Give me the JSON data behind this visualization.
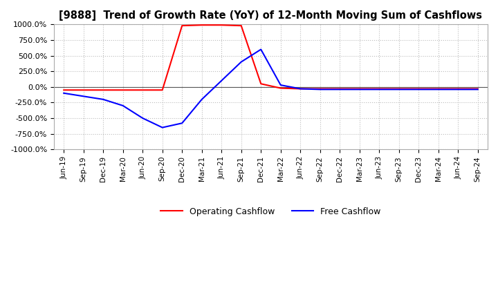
{
  "title": "[9888]  Trend of Growth Rate (YoY) of 12-Month Moving Sum of Cashflows",
  "ylim": [
    -1000,
    1000
  ],
  "yticks": [
    -1000,
    -750,
    -500,
    -250,
    0,
    250,
    500,
    750,
    1000
  ],
  "ytick_labels": [
    "-1000.0%",
    "-750.0%",
    "-500.0%",
    "-250.0%",
    "0.0%",
    "250.0%",
    "500.0%",
    "750.0%",
    "1000.0%"
  ],
  "background_color": "#ffffff",
  "grid_color": "#bbbbbb",
  "x_labels": [
    "Jun-19",
    "Sep-19",
    "Dec-19",
    "Mar-20",
    "Jun-20",
    "Sep-20",
    "Dec-20",
    "Mar-21",
    "Jun-21",
    "Sep-21",
    "Dec-21",
    "Mar-22",
    "Jun-22",
    "Sep-22",
    "Dec-22",
    "Mar-23",
    "Jun-23",
    "Sep-23",
    "Dec-23",
    "Mar-24",
    "Jun-24",
    "Sep-24"
  ],
  "operating_cashflow": [
    -50,
    -50,
    -50,
    -50,
    -50,
    -50,
    980,
    990,
    990,
    980,
    50,
    -20,
    -30,
    -30,
    -30,
    -30,
    -30,
    -30,
    -30,
    -30,
    -30,
    -30
  ],
  "free_cashflow": [
    -100,
    -150,
    -200,
    -300,
    -500,
    -650,
    -580,
    -200,
    100,
    400,
    600,
    30,
    -30,
    -40,
    -40,
    -40,
    -40,
    -40,
    -40,
    -40,
    -40,
    -40
  ],
  "operating_color": "#ff0000",
  "free_color": "#0000ff",
  "legend_labels": [
    "Operating Cashflow",
    "Free Cashflow"
  ]
}
